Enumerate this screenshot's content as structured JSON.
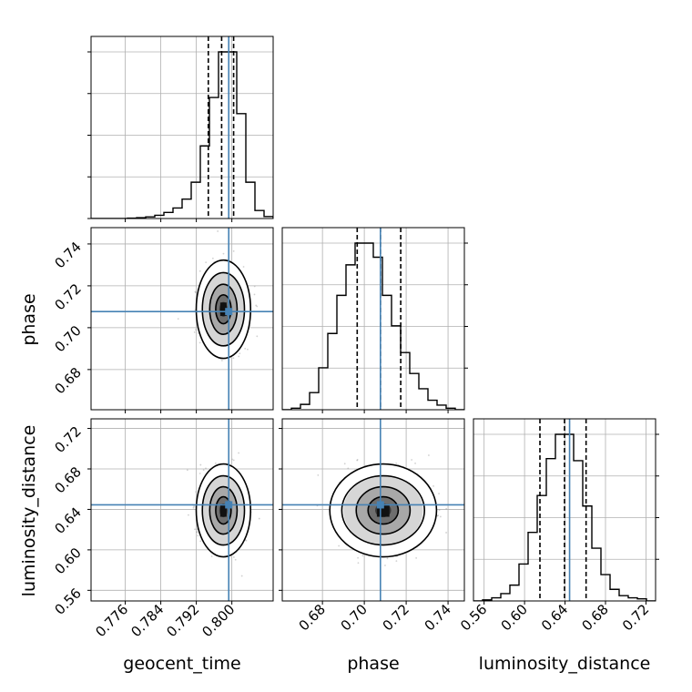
{
  "chart_data": {
    "type": "corner",
    "parameters": [
      "geocent_time",
      "phase",
      "luminosity_distance"
    ],
    "axis_labels": {
      "x": [
        "geocent_time",
        "phase",
        "luminosity_distance"
      ],
      "y": [
        "phase",
        "luminosity_distance"
      ]
    },
    "ranges": {
      "geocent_time": [
        0.7683,
        0.8093
      ],
      "phase": [
        0.6608,
        0.7478
      ],
      "luminosity_distance": [
        0.5495,
        0.7295
      ]
    },
    "ticks": {
      "geocent_time": [
        "0.776",
        "0.784",
        "0.792",
        "0.800"
      ],
      "phase": [
        "0.68",
        "0.70",
        "0.72",
        "0.74"
      ],
      "luminosity_distance": [
        "0.56",
        "0.60",
        "0.64",
        "0.68",
        "0.72"
      ]
    },
    "tick_values": {
      "geocent_time": [
        0.776,
        0.784,
        0.792,
        0.8
      ],
      "phase": [
        0.68,
        0.7,
        0.72,
        0.74
      ],
      "luminosity_distance": [
        0.56,
        0.6,
        0.64,
        0.68,
        0.72
      ]
    },
    "truths": {
      "geocent_time": 0.7993,
      "phase": 0.7077,
      "luminosity_distance": 0.6445
    },
    "histograms": {
      "geocent_time": {
        "edges": [
          0.7683,
          0.77035,
          0.7724,
          0.77445,
          0.7765,
          0.77855,
          0.7806,
          0.78265,
          0.7847,
          0.78675,
          0.7888,
          0.79085,
          0.7929,
          0.79495,
          0.797,
          0.79905,
          0.8011,
          0.80315,
          0.8052,
          0.80725,
          0.8093
        ],
        "counts": [
          0,
          0,
          0,
          0,
          1,
          2,
          4,
          8,
          15,
          26,
          48,
          90,
          180,
          300,
          413,
          413,
          260,
          90,
          20,
          5
        ],
        "quantiles": [
          0.7947,
          0.7977,
          0.8004
        ]
      },
      "phase": {
        "edges": [
          0.6608,
          0.66515,
          0.6695,
          0.67385,
          0.6782,
          0.68255,
          0.6869,
          0.69125,
          0.6956,
          0.69995,
          0.7043,
          0.70865,
          0.713,
          0.71735,
          0.7217,
          0.72605,
          0.7304,
          0.73475,
          0.7391,
          0.74345,
          0.7478
        ],
        "counts": [
          0,
          4,
          14,
          45,
          110,
          200,
          300,
          380,
          437,
          437,
          400,
          300,
          220,
          150,
          95,
          55,
          25,
          12,
          4,
          0
        ],
        "quantiles": [
          0.6966,
          0.7077,
          0.7174
        ]
      },
      "luminosity_distance": {
        "edges": [
          0.5495,
          0.5585,
          0.5675,
          0.5765,
          0.5855,
          0.5945,
          0.6035,
          0.6125,
          0.6215,
          0.6305,
          0.6395,
          0.6485,
          0.6575,
          0.6665,
          0.6755,
          0.6845,
          0.6935,
          0.7025,
          0.7115,
          0.7205,
          0.7295
        ],
        "counts": [
          0,
          2,
          6,
          14,
          30,
          70,
          130,
          200,
          270,
          316,
          316,
          266,
          180,
          100,
          50,
          22,
          10,
          6,
          4,
          0
        ],
        "quantiles": [
          0.6152,
          0.6395,
          0.6608
        ]
      }
    },
    "joint_2d": {
      "phase_vs_geocent_time": {
        "center": [
          0.7981,
          0.7088
        ],
        "sd": [
          0.0024,
          0.0092
        ],
        "contour_levels": 4
      },
      "luminosity_distance_vs_geocent_time": {
        "center": [
          0.7981,
          0.639
        ],
        "sd": [
          0.0024,
          0.018
        ],
        "contour_levels": 4
      },
      "luminosity_distance_vs_phase": {
        "center": [
          0.709,
          0.639
        ],
        "sd": [
          0.01,
          0.018
        ],
        "contour_levels": 4
      }
    },
    "grid": true,
    "colors": {
      "truth": "#4682b4",
      "hist": "#000000",
      "grid": "#b0b0b0",
      "scatter": "#9a9a9a"
    }
  }
}
